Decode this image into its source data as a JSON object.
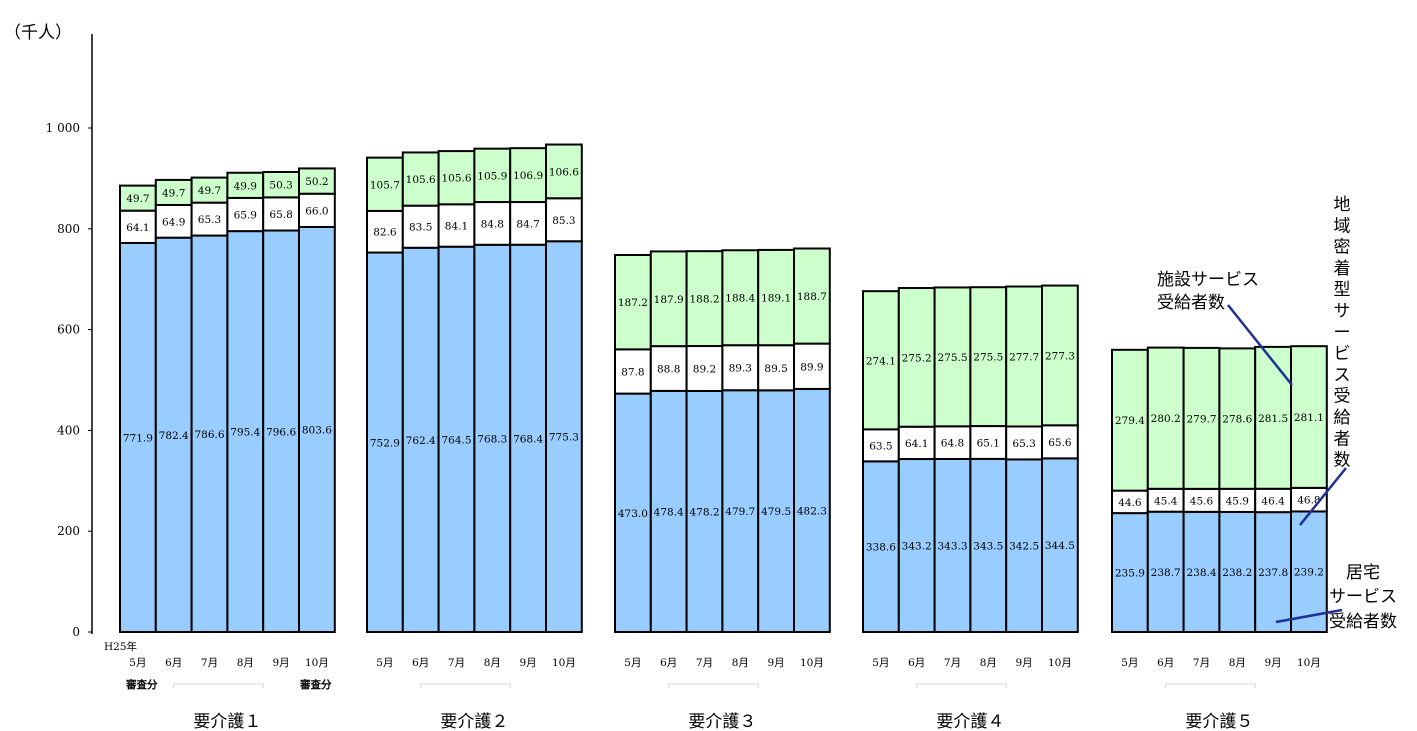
{
  "chart_data": {
    "type": "bar",
    "stacked": true,
    "ylabel": "（千人）",
    "ylim": [
      0,
      1000
    ],
    "yticks": [
      "0",
      "200",
      "400",
      "600",
      "800",
      "1 000"
    ],
    "months": [
      "5月",
      "6月",
      "7月",
      "8月",
      "9月",
      "10月"
    ],
    "year_label": "H25年",
    "note_first": "審査分",
    "note_last": "審査分",
    "groups": [
      {
        "name": "要介護１",
        "home": [
          771.9,
          782.4,
          786.6,
          795.4,
          796.6,
          803.6
        ],
        "community": [
          64.1,
          64.9,
          65.3,
          65.9,
          65.8,
          66.0
        ],
        "facility": [
          49.7,
          49.7,
          49.7,
          49.9,
          50.3,
          50.2
        ]
      },
      {
        "name": "要介護２",
        "home": [
          752.9,
          762.4,
          764.5,
          768.3,
          768.4,
          775.3
        ],
        "community": [
          82.6,
          83.5,
          84.1,
          84.8,
          84.7,
          85.3
        ],
        "facility": [
          105.7,
          105.6,
          105.6,
          105.9,
          106.9,
          106.6
        ]
      },
      {
        "name": "要介護３",
        "home": [
          473.0,
          478.4,
          478.2,
          479.7,
          479.5,
          482.3
        ],
        "community": [
          87.8,
          88.8,
          89.2,
          89.3,
          89.5,
          89.9
        ],
        "facility": [
          187.2,
          187.9,
          188.2,
          188.4,
          189.1,
          188.7
        ]
      },
      {
        "name": "要介護４",
        "home": [
          338.6,
          343.2,
          343.3,
          343.5,
          342.5,
          344.5
        ],
        "community": [
          63.5,
          64.1,
          64.8,
          65.1,
          65.3,
          65.6
        ],
        "facility": [
          274.1,
          275.2,
          275.5,
          275.5,
          277.7,
          277.3
        ]
      },
      {
        "name": "要介護５",
        "home": [
          235.9,
          238.7,
          238.4,
          238.2,
          237.8,
          239.2
        ],
        "community": [
          44.6,
          45.4,
          45.6,
          45.9,
          46.4,
          46.8
        ],
        "facility": [
          279.4,
          280.2,
          279.7,
          278.6,
          281.5,
          281.1
        ]
      }
    ],
    "colors": {
      "home": "#99ccff",
      "community": "#ffffff",
      "facility": "#ccffcc"
    },
    "annotations": {
      "facility": [
        "施設サービス",
        "受給者数"
      ],
      "community": [
        "地",
        "域",
        "密",
        "着",
        "型",
        "サ",
        "ー",
        "ビ",
        "ス",
        "受",
        "給",
        "者",
        "数"
      ],
      "home": [
        "居宅",
        "サービス",
        "受給者数"
      ]
    }
  }
}
